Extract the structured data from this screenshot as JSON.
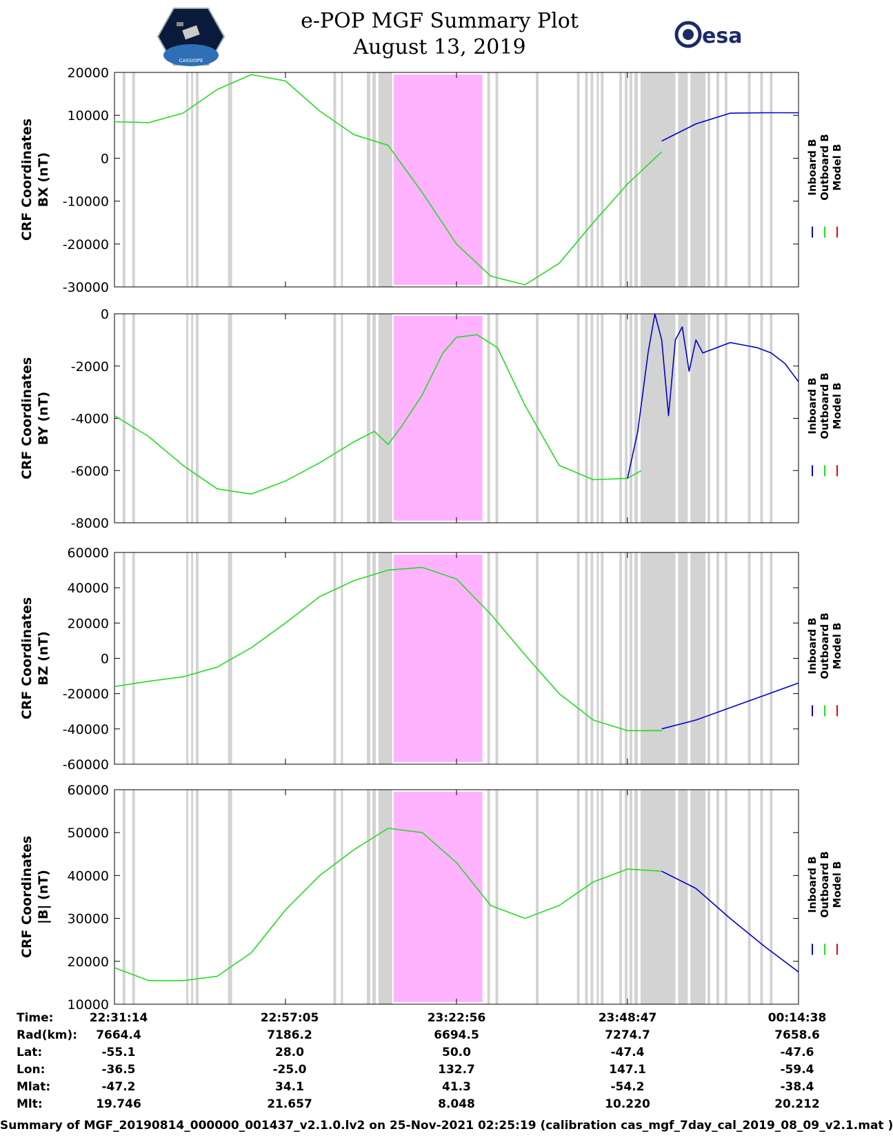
{
  "header": {
    "title_line1": "e-POP MGF Summary Plot",
    "title_line2": "August 13, 2019",
    "left_logo_text": "CASSIOPE",
    "right_logo_text": "esa"
  },
  "legend": [
    "Inboard B",
    "Outboard B",
    "Model B"
  ],
  "colors": {
    "inboard": "#0000cc",
    "outboard": "#22dd22",
    "model": "#ee0000",
    "gap_band": "#d3d3d3",
    "highlight_band": "#ffb3ff"
  },
  "chart_data": [
    {
      "type": "line",
      "ylabel_line1": "CRF Coordinates",
      "ylabel_line2": "BX (nT)",
      "ylim": [
        -30000,
        20000
      ],
      "yticks": [
        20000,
        10000,
        0,
        -10000,
        -20000,
        -30000
      ],
      "ytick_labels": [
        "20000",
        "10000",
        "0",
        "-10000",
        "-20000",
        "-30000"
      ],
      "series": [
        {
          "name": "Outboard B",
          "x": [
            0,
            5,
            10,
            15,
            20,
            25,
            30,
            35,
            40,
            45,
            50,
            55,
            60,
            65,
            70,
            75,
            80
          ],
          "values": [
            8500,
            8300,
            10500,
            16000,
            19500,
            18000,
            11000,
            5500,
            3000,
            -8000,
            -20000,
            -27500,
            -29500,
            -24500,
            -15000,
            -6000,
            1500
          ]
        },
        {
          "name": "Inboard B",
          "x": [
            80,
            85,
            90,
            95,
            100
          ],
          "values": [
            4000,
            8000,
            10500,
            10600,
            10600
          ]
        }
      ]
    },
    {
      "type": "line",
      "ylabel_line1": "CRF Coordinates",
      "ylabel_line2": "BY (nT)",
      "ylim": [
        -8000,
        0
      ],
      "yticks": [
        0,
        -2000,
        -4000,
        -6000,
        -8000
      ],
      "ytick_labels": [
        "0",
        "-2000",
        "-4000",
        "-6000",
        "-8000"
      ],
      "series": [
        {
          "name": "Outboard B",
          "x": [
            0,
            5,
            10,
            15,
            20,
            25,
            30,
            35,
            38,
            40,
            42,
            45,
            48,
            50,
            53,
            56,
            60,
            65,
            70,
            75,
            77
          ],
          "values": [
            -3900,
            -4700,
            -5800,
            -6700,
            -6900,
            -6400,
            -5700,
            -4900,
            -4500,
            -5000,
            -4300,
            -3100,
            -1500,
            -900,
            -800,
            -1300,
            -3500,
            -5800,
            -6350,
            -6300,
            -6000
          ]
        },
        {
          "name": "Inboard B",
          "x": [
            75,
            76.5,
            78,
            79,
            80,
            81,
            82,
            83,
            84,
            85,
            86,
            88,
            90,
            92,
            94,
            96,
            98,
            100
          ],
          "values": [
            -6300,
            -4500,
            -1500,
            0,
            -1000,
            -3900,
            -1000,
            -500,
            -2200,
            -1000,
            -1500,
            -1300,
            -1100,
            -1200,
            -1300,
            -1500,
            -1900,
            -2600
          ]
        }
      ]
    },
    {
      "type": "line",
      "ylabel_line1": "CRF Coordinates",
      "ylabel_line2": "BZ (nT)",
      "ylim": [
        -60000,
        60000
      ],
      "yticks": [
        60000,
        40000,
        20000,
        0,
        -20000,
        -40000,
        -60000
      ],
      "ytick_labels": [
        "60000",
        "40000",
        "20000",
        "0",
        "-20000",
        "-40000",
        "-60000"
      ],
      "series": [
        {
          "name": "Outboard B",
          "x": [
            0,
            5,
            10,
            15,
            20,
            25,
            30,
            35,
            40,
            45,
            50,
            55,
            60,
            65,
            70,
            75,
            80
          ],
          "values": [
            -16000,
            -13000,
            -10500,
            -5000,
            6000,
            20000,
            35000,
            44000,
            50000,
            51500,
            45000,
            25000,
            2000,
            -20000,
            -35000,
            -41000,
            -41000
          ]
        },
        {
          "name": "Inboard B",
          "x": [
            80,
            85,
            90,
            95,
            100
          ],
          "values": [
            -40000,
            -35000,
            -28000,
            -21000,
            -14000
          ]
        }
      ]
    },
    {
      "type": "line",
      "ylabel_line1": "CRF Coordinates",
      "ylabel_line2": "|B| (nT)",
      "ylim": [
        10000,
        60000
      ],
      "yticks": [
        60000,
        50000,
        40000,
        30000,
        20000,
        10000
      ],
      "ytick_labels": [
        "60000",
        "50000",
        "40000",
        "30000",
        "20000",
        "10000"
      ],
      "series": [
        {
          "name": "Outboard B",
          "x": [
            0,
            5,
            10,
            15,
            20,
            25,
            30,
            35,
            40,
            45,
            50,
            55,
            60,
            65,
            70,
            75,
            80
          ],
          "values": [
            18500,
            15500,
            15500,
            16500,
            22000,
            32000,
            40000,
            46000,
            51000,
            50000,
            43000,
            33000,
            30000,
            33000,
            38500,
            41500,
            41000
          ]
        },
        {
          "name": "Inboard B",
          "x": [
            80,
            85,
            90,
            95,
            100
          ],
          "values": [
            41000,
            37000,
            30000,
            23500,
            17500
          ]
        }
      ]
    }
  ],
  "info_table": {
    "labels": [
      "Time:",
      "Rad(km):",
      "Lat:",
      "Lon:",
      "Mlat:",
      "Mlt:"
    ],
    "columns": [
      [
        "22:31:14",
        "7664.4",
        "-55.1",
        "-36.5",
        "-47.2",
        "19.746"
      ],
      [
        "22:57:05",
        "7186.2",
        "28.0",
        "-25.0",
        "34.1",
        "21.657"
      ],
      [
        "23:22:56",
        "6694.5",
        "50.0",
        "132.7",
        "41.3",
        "8.048"
      ],
      [
        "23:48:47",
        "7274.7",
        "-47.4",
        "147.1",
        "-54.2",
        "10.220"
      ],
      [
        "00:14:38",
        "7658.6",
        "-47.6",
        "-59.4",
        "-38.4",
        "20.212"
      ]
    ]
  },
  "footer": "Summary of MGF_20190814_000000_001437_v2.1.0.lv2 on 25-Nov-2021 02:25:19 (calibration cas_mgf_7day_cal_2019_08_09_v2.1.mat )"
}
